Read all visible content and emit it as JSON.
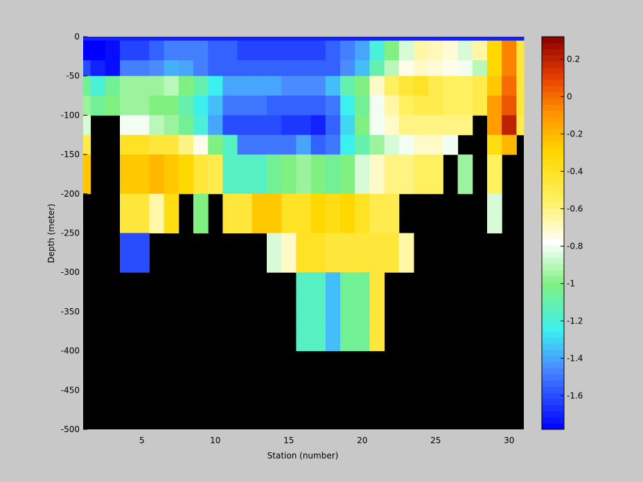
{
  "chart_data": [
    {
      "type": "heatmap",
      "xlabel": "Station (number)",
      "ylabel": "Depth (meter)",
      "xlim": [
        1,
        31
      ],
      "ylim": [
        -500,
        0
      ],
      "x_ticks": [
        "5",
        "10",
        "15",
        "20",
        "25",
        "30"
      ],
      "x_tick_values": [
        5,
        10,
        15,
        20,
        25,
        30
      ],
      "y_ticks": [
        "0",
        "-50",
        "-100",
        "-150",
        "-200",
        "-250",
        "-300",
        "-350",
        "-400",
        "-450",
        "-500"
      ],
      "y_tick_values": [
        0,
        -50,
        -100,
        -150,
        -200,
        -250,
        -300,
        -350,
        -400,
        -450,
        -500
      ],
      "no_data_color": "#000000",
      "stations": [
        1,
        2,
        3,
        4,
        5,
        6,
        7,
        8,
        9,
        10,
        11,
        12,
        13,
        14,
        15,
        16,
        17,
        18,
        19,
        20,
        21,
        22,
        23,
        24,
        25,
        26,
        27,
        28,
        29,
        30,
        31
      ],
      "depth_bins": [
        {
          "top": 0,
          "bottom": -5,
          "values": [
            -1.7,
            -1.7,
            -1.7,
            -1.7,
            -1.7,
            -1.7,
            -1.7,
            -1.7,
            -1.7,
            -1.7,
            -1.7,
            -1.7,
            -1.7,
            -1.7,
            -1.7,
            -1.7,
            -1.7,
            -1.7,
            -1.7,
            -1.7,
            -1.7,
            -1.7,
            -1.7,
            -1.7,
            -1.7,
            -1.7,
            -1.7,
            -1.7,
            -1.7,
            -1.7,
            -1.7
          ]
        },
        {
          "top": -5,
          "bottom": -30,
          "values": [
            -1.78,
            -1.78,
            -1.75,
            -1.62,
            -1.62,
            -1.55,
            -1.48,
            -1.48,
            -1.48,
            -1.55,
            -1.55,
            -1.62,
            -1.62,
            -1.62,
            -1.62,
            -1.62,
            -1.62,
            -1.55,
            -1.48,
            -1.4,
            -1.2,
            -1.0,
            -0.85,
            -0.65,
            -0.68,
            -0.72,
            -0.85,
            -0.65,
            -0.3,
            -0.05,
            -0.45
          ]
        },
        {
          "top": -30,
          "bottom": -50,
          "values": [
            -1.6,
            -1.7,
            -1.75,
            -1.48,
            -1.48,
            -1.45,
            -1.38,
            -1.4,
            -1.48,
            -1.55,
            -1.55,
            -1.55,
            -1.55,
            -1.55,
            -1.55,
            -1.55,
            -1.55,
            -1.55,
            -1.45,
            -1.35,
            -1.1,
            -0.9,
            -0.75,
            -0.7,
            -0.72,
            -0.75,
            -0.8,
            -0.9,
            -0.3,
            -0.05,
            -0.45
          ]
        },
        {
          "top": -50,
          "bottom": -75,
          "values": [
            -1.05,
            -1.2,
            -1.05,
            -0.95,
            -0.95,
            -0.95,
            -0.9,
            -1.0,
            -1.1,
            -1.25,
            -1.4,
            -1.4,
            -1.4,
            -1.4,
            -1.45,
            -1.45,
            -1.45,
            -1.35,
            -1.1,
            -1.0,
            -0.7,
            -0.55,
            -0.45,
            -0.4,
            -0.5,
            -0.55,
            -0.55,
            -0.5,
            -0.25,
            0.0,
            -0.45
          ]
        },
        {
          "top": -75,
          "bottom": -100,
          "values": [
            -0.95,
            -1.05,
            -1.0,
            -0.95,
            -0.95,
            -1.0,
            -1.0,
            -1.1,
            -1.25,
            -1.35,
            -1.5,
            -1.5,
            -1.5,
            -1.55,
            -1.55,
            -1.55,
            -1.55,
            -1.5,
            -1.25,
            -1.05,
            -0.8,
            -0.65,
            -0.55,
            -0.5,
            -0.5,
            -0.55,
            -0.55,
            -0.5,
            -0.12,
            0.05,
            -0.45
          ]
        },
        {
          "top": -100,
          "bottom": -125,
          "values": [
            -0.85,
            null,
            null,
            -0.8,
            -0.8,
            -0.9,
            -0.95,
            -1.05,
            -1.2,
            -1.4,
            -1.6,
            -1.6,
            -1.6,
            -1.6,
            -1.65,
            -1.65,
            -1.7,
            -1.55,
            -1.3,
            -1.0,
            -0.8,
            -0.7,
            -0.6,
            -0.6,
            -0.6,
            -0.6,
            -0.6,
            null,
            -0.12,
            0.2,
            -0.5
          ]
        },
        {
          "top": -125,
          "bottom": -150,
          "values": [
            -0.5,
            null,
            null,
            -0.4,
            -0.4,
            -0.45,
            -0.45,
            -0.6,
            -0.75,
            -1.0,
            -1.15,
            -1.5,
            -1.5,
            -1.5,
            -1.5,
            -1.4,
            -1.55,
            -1.5,
            -1.25,
            -1.1,
            -0.95,
            -0.85,
            -0.8,
            -0.7,
            -0.7,
            -0.8,
            null,
            null,
            -0.35,
            -0.2,
            null
          ]
        },
        {
          "top": -150,
          "bottom": -175,
          "values": [
            -0.25,
            null,
            null,
            -0.25,
            -0.25,
            -0.2,
            -0.25,
            -0.3,
            -0.45,
            -0.5,
            -1.15,
            -1.15,
            -1.15,
            -1.05,
            -1.0,
            -0.95,
            -1.0,
            -1.05,
            -1.0,
            -0.85,
            -0.7,
            -0.6,
            -0.6,
            -0.55,
            -0.55,
            null,
            -0.95,
            null,
            -0.55,
            null,
            null
          ]
        },
        {
          "top": -175,
          "bottom": -200,
          "values": [
            -0.25,
            null,
            null,
            -0.25,
            -0.25,
            -0.2,
            -0.25,
            -0.3,
            -0.45,
            -0.5,
            -1.15,
            -1.15,
            -1.15,
            -1.05,
            -1.0,
            -0.95,
            -1.0,
            -1.05,
            -1.0,
            -0.85,
            -0.7,
            -0.6,
            -0.6,
            -0.55,
            -0.55,
            null,
            -0.95,
            null,
            -0.55,
            null,
            null
          ]
        },
        {
          "top": -200,
          "bottom": -225,
          "values": [
            null,
            null,
            null,
            -0.45,
            -0.45,
            -0.65,
            -0.35,
            null,
            -1.0,
            null,
            -0.45,
            -0.45,
            -0.25,
            -0.25,
            -0.4,
            -0.4,
            -0.3,
            -0.35,
            -0.3,
            -0.4,
            -0.5,
            -0.5,
            null,
            null,
            null,
            null,
            null,
            null,
            -0.85,
            null,
            null
          ]
        },
        {
          "top": -225,
          "bottom": -250,
          "values": [
            null,
            null,
            null,
            -0.45,
            -0.45,
            -0.65,
            -0.35,
            null,
            -1.0,
            null,
            -0.45,
            -0.45,
            -0.25,
            -0.25,
            -0.4,
            -0.4,
            -0.3,
            -0.35,
            -0.3,
            -0.4,
            -0.5,
            -0.5,
            null,
            null,
            null,
            null,
            null,
            null,
            -0.85,
            null,
            null
          ]
        },
        {
          "top": -250,
          "bottom": -275,
          "values": [
            null,
            null,
            null,
            -1.6,
            -1.6,
            null,
            null,
            null,
            null,
            null,
            null,
            null,
            null,
            -0.85,
            -0.7,
            -0.4,
            -0.4,
            -0.45,
            -0.45,
            -0.45,
            -0.45,
            -0.45,
            -0.65,
            null,
            null,
            null,
            null,
            null,
            null,
            null,
            null
          ]
        },
        {
          "top": -275,
          "bottom": -300,
          "values": [
            null,
            null,
            null,
            -1.6,
            -1.6,
            null,
            null,
            null,
            null,
            null,
            null,
            null,
            null,
            -0.85,
            -0.7,
            -0.4,
            -0.4,
            -0.45,
            -0.45,
            -0.45,
            -0.45,
            -0.45,
            -0.65,
            null,
            null,
            null,
            null,
            null,
            null,
            null,
            null
          ]
        },
        {
          "top": -300,
          "bottom": -325,
          "values": [
            null,
            null,
            null,
            null,
            null,
            null,
            null,
            null,
            null,
            null,
            null,
            null,
            null,
            null,
            null,
            -1.15,
            -1.15,
            -1.35,
            -1.05,
            -1.05,
            -0.45,
            null,
            null,
            null,
            null,
            null,
            null,
            null,
            null,
            null,
            null
          ]
        },
        {
          "top": -325,
          "bottom": -350,
          "values": [
            null,
            null,
            null,
            null,
            null,
            null,
            null,
            null,
            null,
            null,
            null,
            null,
            null,
            null,
            null,
            -1.15,
            -1.15,
            -1.35,
            -1.05,
            -1.05,
            -0.45,
            null,
            null,
            null,
            null,
            null,
            null,
            null,
            null,
            null,
            null
          ]
        },
        {
          "top": -350,
          "bottom": -375,
          "values": [
            null,
            null,
            null,
            null,
            null,
            null,
            null,
            null,
            null,
            null,
            null,
            null,
            null,
            null,
            null,
            -1.15,
            -1.15,
            -1.35,
            -1.05,
            -1.05,
            -0.45,
            null,
            null,
            null,
            null,
            null,
            null,
            null,
            null,
            null,
            null
          ]
        },
        {
          "top": -375,
          "bottom": -400,
          "values": [
            null,
            null,
            null,
            null,
            null,
            null,
            null,
            null,
            null,
            null,
            null,
            null,
            null,
            null,
            null,
            -1.15,
            -1.15,
            -1.35,
            -1.05,
            -1.05,
            -0.45,
            null,
            null,
            null,
            null,
            null,
            null,
            null,
            null,
            null,
            null
          ]
        }
      ]
    },
    {
      "type": "colorbar",
      "range": [
        -1.78,
        0.32
      ],
      "ticks": [
        "0.2",
        "0",
        "-0.2",
        "-0.4",
        "-0.6",
        "-0.8",
        "-1",
        "-1.2",
        "-1.4",
        "-1.6"
      ],
      "tick_values": [
        0.2,
        0,
        -0.2,
        -0.4,
        -0.6,
        -0.8,
        -1.0,
        -1.2,
        -1.4,
        -1.6
      ],
      "colormap": "jet-like (blue to white to yellow to dark red)",
      "colormap_stops": [
        {
          "v": -1.78,
          "c": "#0000ff"
        },
        {
          "v": -1.45,
          "c": "#4a8cff"
        },
        {
          "v": -1.25,
          "c": "#3cf0f0"
        },
        {
          "v": -1.0,
          "c": "#80f080"
        },
        {
          "v": -0.78,
          "c": "#ffffff"
        },
        {
          "v": -0.55,
          "c": "#fff060"
        },
        {
          "v": -0.3,
          "c": "#ffd800"
        },
        {
          "v": -0.08,
          "c": "#ff9000"
        },
        {
          "v": 0.1,
          "c": "#e84000"
        },
        {
          "v": 0.32,
          "c": "#8a0000"
        }
      ]
    }
  ]
}
